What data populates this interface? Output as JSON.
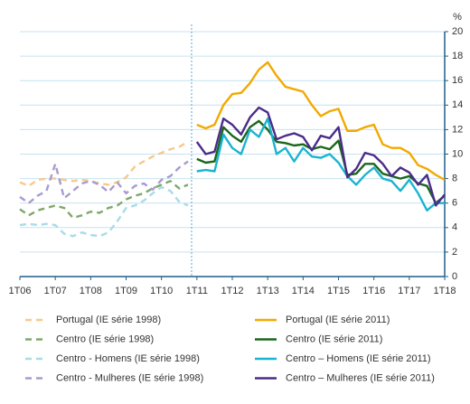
{
  "chart_data": {
    "type": "line",
    "y_unit": "%",
    "categories": [
      "1T06",
      null,
      null,
      null,
      "1T07",
      null,
      null,
      null,
      "1T08",
      null,
      null,
      null,
      "1T09",
      null,
      null,
      null,
      "1T10",
      null,
      null,
      null,
      "1T11",
      null,
      null,
      null,
      "1T12",
      null,
      null,
      null,
      "1T13",
      null,
      null,
      null,
      "1T14",
      null,
      null,
      null,
      "1T15",
      null,
      null,
      null,
      "1T16",
      null,
      null,
      null,
      "1T17",
      null,
      null,
      null,
      "1T18"
    ],
    "ylim": [
      0,
      20
    ],
    "yticks": [
      0,
      2,
      4,
      6,
      8,
      10,
      12,
      14,
      16,
      18,
      20
    ],
    "grid": true,
    "series": [
      {
        "name": "Portugal (IE série 1998)",
        "color": "#f8c98c",
        "dashed": true,
        "values": [
          7.7,
          7.4,
          7.9,
          8.0,
          8.0,
          7.9,
          7.8,
          7.9,
          7.8,
          7.6,
          7.5,
          7.7,
          8.1,
          9.0,
          9.4,
          9.8,
          10.1,
          10.4,
          10.6,
          11.0,
          null,
          null,
          null,
          null,
          null,
          null,
          null,
          null,
          null,
          null,
          null,
          null,
          null,
          null,
          null,
          null,
          null,
          null,
          null,
          null,
          null,
          null,
          null,
          null,
          null,
          null,
          null,
          null,
          null
        ]
      },
      {
        "name": "Portugal (IE série 2011)",
        "color": "#f2a900",
        "dashed": false,
        "values": [
          null,
          null,
          null,
          null,
          null,
          null,
          null,
          null,
          null,
          null,
          null,
          null,
          null,
          null,
          null,
          null,
          null,
          null,
          null,
          null,
          12.4,
          12.1,
          12.4,
          14.0,
          14.9,
          15.0,
          15.8,
          16.9,
          17.5,
          16.4,
          15.5,
          15.3,
          15.1,
          14.0,
          13.1,
          13.5,
          13.7,
          11.9,
          11.9,
          12.2,
          12.4,
          10.8,
          10.5,
          10.5,
          10.1,
          9.1,
          8.8,
          8.3,
          7.9
        ]
      },
      {
        "name": "Centro (IE série 1998)",
        "color": "#7fa86a",
        "dashed": true,
        "values": [
          5.5,
          5.0,
          5.4,
          5.6,
          5.8,
          5.6,
          4.8,
          5.0,
          5.3,
          5.2,
          5.6,
          5.8,
          6.3,
          6.6,
          6.8,
          7.2,
          7.5,
          7.8,
          7.2,
          7.5,
          null,
          null,
          null,
          null,
          null,
          null,
          null,
          null,
          null,
          null,
          null,
          null,
          null,
          null,
          null,
          null,
          null,
          null,
          null,
          null,
          null,
          null,
          null,
          null,
          null,
          null,
          null,
          null,
          null
        ]
      },
      {
        "name": "Centro (IE série 2011)",
        "color": "#1b661c",
        "dashed": false,
        "values": [
          null,
          null,
          null,
          null,
          null,
          null,
          null,
          null,
          null,
          null,
          null,
          null,
          null,
          null,
          null,
          null,
          null,
          null,
          null,
          null,
          9.6,
          9.3,
          9.4,
          12.2,
          11.5,
          11.0,
          12.2,
          12.7,
          12.0,
          11.0,
          10.9,
          10.7,
          10.8,
          10.4,
          10.6,
          10.4,
          11.1,
          8.3,
          8.4,
          9.2,
          9.2,
          8.4,
          8.2,
          8.0,
          8.2,
          7.6,
          7.4,
          6.0,
          6.6
        ]
      },
      {
        "name": "Centro - Homens (IE série 1998)",
        "color": "#a8dce8",
        "dashed": true,
        "values": [
          4.2,
          4.3,
          4.2,
          4.3,
          4.2,
          3.5,
          3.3,
          3.6,
          3.4,
          3.3,
          3.6,
          4.5,
          5.6,
          5.8,
          6.2,
          6.8,
          7.3,
          7.0,
          6.1,
          5.8,
          null,
          null,
          null,
          null,
          null,
          null,
          null,
          null,
          null,
          null,
          null,
          null,
          null,
          null,
          null,
          null,
          null,
          null,
          null,
          null,
          null,
          null,
          null,
          null,
          null,
          null,
          null,
          null,
          null
        ]
      },
      {
        "name": "Centro – Homens (IE série 2011)",
        "color": "#1ab4d0",
        "dashed": false,
        "values": [
          null,
          null,
          null,
          null,
          null,
          null,
          null,
          null,
          null,
          null,
          null,
          null,
          null,
          null,
          null,
          null,
          null,
          null,
          null,
          null,
          8.6,
          8.7,
          8.6,
          11.6,
          10.5,
          10.0,
          12.0,
          11.4,
          12.9,
          10.0,
          10.5,
          9.4,
          10.5,
          9.8,
          9.7,
          10.0,
          9.3,
          8.2,
          7.5,
          8.3,
          8.9,
          8.0,
          7.8,
          7.0,
          7.9,
          6.8,
          5.4,
          6.0,
          6.0
        ]
      },
      {
        "name": "Centro - Mulheres (IE série 1998)",
        "color": "#a99bd0",
        "dashed": true,
        "values": [
          6.5,
          6.0,
          6.6,
          7.0,
          9.2,
          6.4,
          7.0,
          7.6,
          7.8,
          7.5,
          6.9,
          7.7,
          6.8,
          7.4,
          7.6,
          7.1,
          7.9,
          8.2,
          8.9,
          9.4,
          null,
          null,
          null,
          null,
          null,
          null,
          null,
          null,
          null,
          null,
          null,
          null,
          null,
          null,
          null,
          null,
          null,
          null,
          null,
          null,
          null,
          null,
          null,
          null,
          null,
          null,
          null,
          null,
          null
        ]
      },
      {
        "name": "Centro – Mulheres (IE série 2011)",
        "color": "#4a2c8a",
        "dashed": false,
        "values": [
          null,
          null,
          null,
          null,
          null,
          null,
          null,
          null,
          null,
          null,
          null,
          null,
          null,
          null,
          null,
          null,
          null,
          null,
          null,
          null,
          11.0,
          10.0,
          10.2,
          12.9,
          12.4,
          11.6,
          13.0,
          13.8,
          13.4,
          11.2,
          11.5,
          11.7,
          11.4,
          10.3,
          11.5,
          11.3,
          12.2,
          8.1,
          8.8,
          10.1,
          9.9,
          9.2,
          8.2,
          8.9,
          8.5,
          7.5,
          8.3,
          5.8,
          6.7
        ]
      }
    ]
  }
}
